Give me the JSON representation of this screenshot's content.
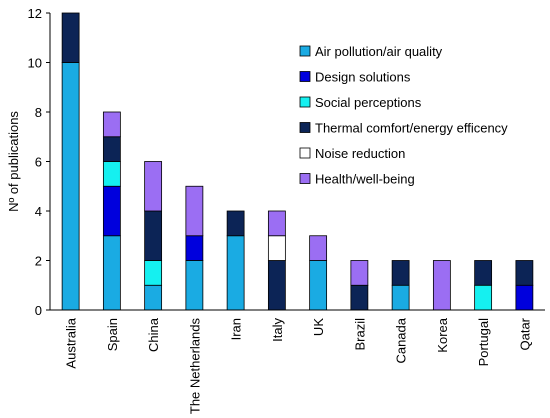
{
  "chart_data": {
    "type": "bar",
    "stacked": true,
    "title": "",
    "xlabel": "",
    "ylabel": "Nº of publications",
    "ylim": [
      0,
      12
    ],
    "yticks": [
      0,
      2,
      4,
      6,
      8,
      10,
      12
    ],
    "grid": false,
    "legend_position": "top-right",
    "categories": [
      "Australia",
      "Spain",
      "China",
      "The Netherlands",
      "Iran",
      "Italy",
      "UK",
      "Brazil",
      "Canada",
      "Korea",
      "Portugal",
      "Qatar"
    ],
    "series": [
      {
        "name": "Air pollution/air quality",
        "color": "#1AABE3",
        "values": [
          10,
          3,
          1,
          2,
          3,
          0,
          2,
          0,
          1,
          0,
          0,
          0
        ]
      },
      {
        "name": "Design solutions",
        "color": "#0000DD",
        "values": [
          0,
          2,
          0,
          1,
          0,
          0,
          0,
          0,
          0,
          0,
          0,
          1
        ]
      },
      {
        "name": "Social perceptions",
        "color": "#15F0F0",
        "values": [
          0,
          1,
          1,
          0,
          0,
          0,
          0,
          0,
          0,
          0,
          1,
          0
        ]
      },
      {
        "name": "Thermal comfort/energy efficency",
        "color": "#0C2456",
        "values": [
          2,
          1,
          2,
          0,
          1,
          2,
          0,
          1,
          1,
          0,
          1,
          1
        ]
      },
      {
        "name": "Noise reduction",
        "color": "#FFFFFF",
        "values": [
          0,
          0,
          0,
          0,
          0,
          1,
          0,
          0,
          0,
          0,
          0,
          0
        ]
      },
      {
        "name": "Health/well-being",
        "color": "#9B6EF3",
        "values": [
          0,
          1,
          2,
          2,
          0,
          1,
          1,
          1,
          0,
          2,
          0,
          0
        ]
      }
    ]
  }
}
